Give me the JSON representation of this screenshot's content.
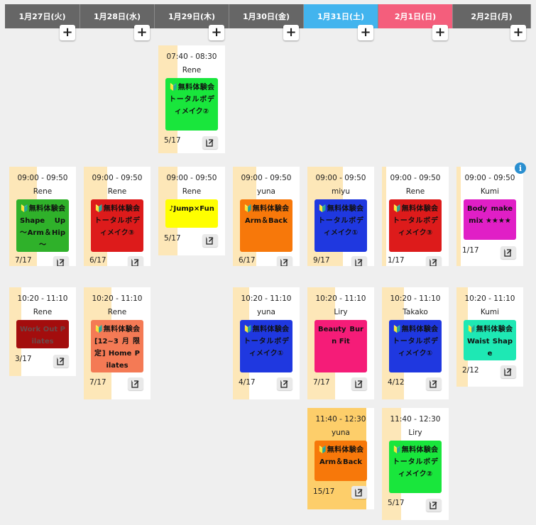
{
  "colors": {
    "header_weekday": "#666666",
    "header_saturday": "#42b4ee",
    "header_sunday": "#f45e7c"
  },
  "icons": {
    "add": "plus-icon",
    "edit": "edit-icon",
    "info": "info-icon"
  },
  "days": [
    {
      "label": "1月27日(火)",
      "type": "weekday",
      "add_label": "+"
    },
    {
      "label": "1月28日(水)",
      "type": "weekday",
      "add_label": "+"
    },
    {
      "label": "1月29日(木)",
      "type": "weekday",
      "add_label": "+"
    },
    {
      "label": "1月30日(金)",
      "type": "weekday",
      "add_label": "+"
    },
    {
      "label": "1月31日(土)",
      "type": "saturday",
      "add_label": "+"
    },
    {
      "label": "2月1日(日)",
      "type": "sunday",
      "add_label": "+"
    },
    {
      "label": "2月2日(月)",
      "type": "weekday",
      "add_label": "+"
    }
  ],
  "info_label": "i",
  "lessons": [
    {
      "day": 2,
      "time": "07:40 - 08:30",
      "instructor": "Rene",
      "class_name": "🔰無料体験会　トータルボディメイク②",
      "class_color": "#19e63c",
      "text_color": "#111111",
      "count": "5/17",
      "fill": 0.29
    },
    {
      "day": 0,
      "time": "09:00 - 09:50",
      "instructor": "Rene",
      "class_name": "🔰無料体験会　Shape Up ～Arm＆Hip～",
      "class_color": "#2fb12a",
      "text_color": "#111111",
      "count": "7/17",
      "fill": 0.41
    },
    {
      "day": 1,
      "time": "09:00 - 09:50",
      "instructor": "Rene",
      "class_name": "🔰無料体験会　トータルボディメイク③",
      "class_color": "#dd1b1b",
      "text_color": "#111111",
      "count": "6/17",
      "fill": 0.35
    },
    {
      "day": 2,
      "time": "09:00 - 09:50",
      "instructor": "Rene",
      "class_name": "♪Jump×Fun",
      "class_color": "#ffff00",
      "text_color": "#111111",
      "count": "5/17",
      "fill": 0.29
    },
    {
      "day": 3,
      "time": "09:00 - 09:50",
      "instructor": "yuna",
      "class_name": "🔰無料体験会　Arm＆Back",
      "class_color": "#f7780a",
      "text_color": "#111111",
      "count": "6/17",
      "fill": 0.35
    },
    {
      "day": 4,
      "time": "09:00 - 09:50",
      "instructor": "miyu",
      "class_name": "🔰無料体験会　トータルボディメイク①",
      "class_color": "#1f38e0",
      "text_color": "#111111",
      "count": "9/17",
      "fill": 0.53
    },
    {
      "day": 5,
      "time": "09:00 - 09:50",
      "instructor": "Rene",
      "class_name": "🔰無料体験会　トータルボディメイク③",
      "class_color": "#dd1b1b",
      "text_color": "#111111",
      "count": "1/17",
      "fill": 0.06
    },
    {
      "day": 6,
      "time": "09:00 - 09:50",
      "instructor": "Kumi",
      "class_name": "Body make mix ★★★★",
      "class_color": "#e01fc6",
      "text_color": "#111111",
      "count": "1/17",
      "fill": 0.06
    },
    {
      "day": 0,
      "time": "10:20 - 11:10",
      "instructor": "Rene",
      "class_name": "Work Out Pilates",
      "class_color": "#a30d0d",
      "text_color": "#6b4a4a",
      "count": "3/17",
      "fill": 0.18
    },
    {
      "day": 1,
      "time": "10:20 - 11:10",
      "instructor": "Rene",
      "class_name": "🔰無料体験会　[12~3月限定] Home Pilates",
      "class_color": "#f47a55",
      "text_color": "#111111",
      "count": "7/17",
      "fill": 0.41
    },
    {
      "day": 3,
      "time": "10:20 - 11:10",
      "instructor": "yuna",
      "class_name": "🔰無料体験会　トータルボディメイク①",
      "class_color": "#1f38e0",
      "text_color": "#111111",
      "count": "4/17",
      "fill": 0.24
    },
    {
      "day": 4,
      "time": "10:20 - 11:10",
      "instructor": "Liry",
      "class_name": "Beauty Burn Fit",
      "class_color": "#f51c78",
      "text_color": "#111111",
      "count": "7/17",
      "fill": 0.41
    },
    {
      "day": 5,
      "time": "10:20 - 11:10",
      "instructor": "Takako",
      "class_name": "🔰無料体験会　トータルボディメイク①",
      "class_color": "#1f38e0",
      "text_color": "#111111",
      "count": "4/12",
      "fill": 0.33
    },
    {
      "day": 6,
      "time": "10:20 - 11:10",
      "instructor": "Kumi",
      "class_name": "🔰無料体験会　Waist Shape",
      "class_color": "#1ee8b4",
      "text_color": "#111111",
      "count": "2/12",
      "fill": 0.17
    },
    {
      "day": 4,
      "time": "11:40 - 12:30",
      "instructor": "yuna",
      "class_name": "🔰無料体験会　Arm＆Back",
      "class_color": "#f7780a",
      "text_color": "#111111",
      "count": "15/17",
      "fill": 0.88
    },
    {
      "day": 5,
      "time": "11:40 - 12:30",
      "instructor": "Liry",
      "class_name": "🔰無料体験会　トータルボディメイク②",
      "class_color": "#19e63c",
      "text_color": "#111111",
      "count": "5/17",
      "fill": 0.29
    }
  ]
}
